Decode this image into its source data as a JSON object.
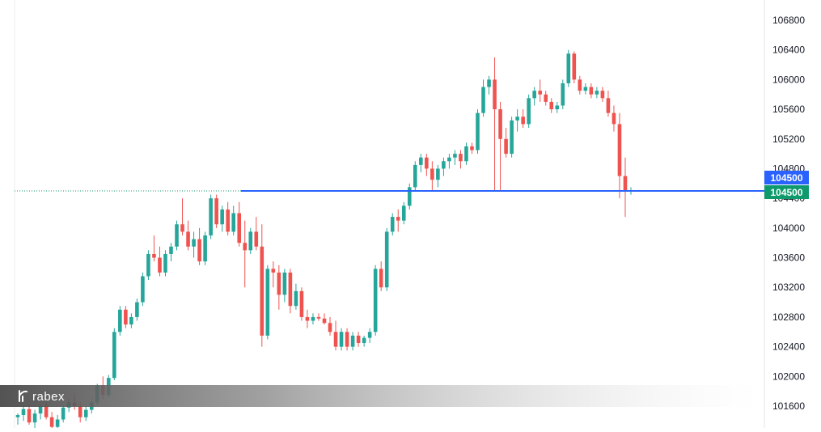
{
  "brand": {
    "name": "rabex"
  },
  "colors": {
    "up": "#26a69a",
    "down": "#ef5350",
    "level_line": "#2962ff",
    "price_tag_blue": "#2962ff",
    "price_tag_green": "#0e9a6c",
    "dotted_line": "#0e9a6c",
    "axis_text": "#131722",
    "background": "#ffffff"
  },
  "chart_data": {
    "type": "candlestick",
    "ylim": [
      101400,
      107000
    ],
    "y_ticks": [
      "106800",
      "106400",
      "106000",
      "105600",
      "105200",
      "104800",
      "104400",
      "104000",
      "103600",
      "103200",
      "102800",
      "102400",
      "102000",
      "101600"
    ],
    "level": {
      "value": 104500,
      "label": "104500"
    },
    "current_price": {
      "value": 104500,
      "label": "104500"
    },
    "candles": [
      [
        101450,
        101500,
        101350,
        101480
      ],
      [
        101480,
        101600,
        101400,
        101560
      ],
      [
        101560,
        101620,
        101350,
        101380
      ],
      [
        101380,
        101550,
        101300,
        101500
      ],
      [
        101500,
        101620,
        101420,
        101600
      ],
      [
        101600,
        101650,
        101420,
        101450
      ],
      [
        101450,
        101520,
        101300,
        101320
      ],
      [
        101320,
        101480,
        101250,
        101420
      ],
      [
        101420,
        101600,
        101380,
        101580
      ],
      [
        101580,
        101700,
        101520,
        101650
      ],
      [
        101650,
        101750,
        101550,
        101600
      ],
      [
        101600,
        101650,
        101380,
        101450
      ],
      [
        101450,
        101600,
        101400,
        101550
      ],
      [
        101550,
        101700,
        101500,
        101650
      ],
      [
        101650,
        101900,
        101620,
        101880
      ],
      [
        101880,
        102000,
        101700,
        101750
      ],
      [
        101750,
        102020,
        101720,
        101980
      ],
      [
        101980,
        102650,
        101950,
        102600
      ],
      [
        102600,
        102950,
        102550,
        102900
      ],
      [
        102900,
        102950,
        102650,
        102700
      ],
      [
        102700,
        102850,
        102650,
        102800
      ],
      [
        102800,
        103050,
        102750,
        103000
      ],
      [
        103000,
        103400,
        102950,
        103350
      ],
      [
        103350,
        103700,
        103300,
        103650
      ],
      [
        103650,
        103900,
        103550,
        103600
      ],
      [
        103600,
        103750,
        103350,
        103400
      ],
      [
        103400,
        103700,
        103350,
        103650
      ],
      [
        103650,
        103800,
        103550,
        103750
      ],
      [
        103750,
        104100,
        103700,
        104050
      ],
      [
        104050,
        104400,
        103900,
        103950
      ],
      [
        103950,
        104100,
        103700,
        103750
      ],
      [
        103750,
        103950,
        103600,
        103850
      ],
      [
        103850,
        104000,
        103500,
        103550
      ],
      [
        103550,
        103950,
        103500,
        103900
      ],
      [
        103900,
        104450,
        103850,
        104400
      ],
      [
        104400,
        104450,
        104000,
        104050
      ],
      [
        104050,
        104300,
        103950,
        104250
      ],
      [
        104250,
        104350,
        103900,
        103950
      ],
      [
        103950,
        104300,
        103900,
        104200
      ],
      [
        104200,
        104350,
        103750,
        103800
      ],
      [
        103800,
        104100,
        103200,
        103700
      ],
      [
        103700,
        104000,
        103650,
        103950
      ],
      [
        103950,
        104150,
        103700,
        103750
      ],
      [
        103750,
        104050,
        102400,
        102550
      ],
      [
        102550,
        103500,
        102500,
        103450
      ],
      [
        103450,
        103550,
        103200,
        103400
      ],
      [
        103400,
        103500,
        102900,
        103100
      ],
      [
        103100,
        103450,
        103000,
        103400
      ],
      [
        103400,
        103450,
        102850,
        102950
      ],
      [
        102950,
        103250,
        102900,
        103150
      ],
      [
        103150,
        103200,
        102750,
        102800
      ],
      [
        102800,
        102900,
        102650,
        102750
      ],
      [
        102750,
        102850,
        102700,
        102800
      ],
      [
        102800,
        102850,
        102750,
        102780
      ],
      [
        102780,
        102850,
        102700,
        102720
      ],
      [
        102720,
        102800,
        102550,
        102600
      ],
      [
        102600,
        102750,
        102350,
        102400
      ],
      [
        102400,
        102650,
        102350,
        102600
      ],
      [
        102600,
        102650,
        102350,
        102400
      ],
      [
        102400,
        102600,
        102350,
        102550
      ],
      [
        102550,
        102600,
        102400,
        102450
      ],
      [
        102450,
        102550,
        102400,
        102520
      ],
      [
        102520,
        102650,
        102450,
        102600
      ],
      [
        102600,
        103500,
        102550,
        103450
      ],
      [
        103450,
        103550,
        103150,
        103200
      ],
      [
        103200,
        104000,
        103150,
        103950
      ],
      [
        103950,
        104200,
        103900,
        104150
      ],
      [
        104150,
        104250,
        103950,
        104100
      ],
      [
        104100,
        104350,
        104050,
        104300
      ],
      [
        104300,
        104600,
        104250,
        104550
      ],
      [
        104550,
        104900,
        104500,
        104850
      ],
      [
        104850,
        105000,
        104750,
        104950
      ],
      [
        104950,
        105000,
        104700,
        104800
      ],
      [
        104800,
        104900,
        104500,
        104650
      ],
      [
        104650,
        104850,
        104550,
        104800
      ],
      [
        104800,
        104950,
        104700,
        104900
      ],
      [
        104900,
        105000,
        104800,
        104950
      ],
      [
        104950,
        105050,
        104850,
        105000
      ],
      [
        105000,
        105050,
        104800,
        104900
      ],
      [
        104900,
        105150,
        104850,
        105100
      ],
      [
        105100,
        105150,
        105000,
        105050
      ],
      [
        105050,
        105600,
        105000,
        105550
      ],
      [
        105550,
        106000,
        105500,
        105900
      ],
      [
        105900,
        106050,
        105800,
        106000
      ],
      [
        106000,
        106300,
        104500,
        105600
      ],
      [
        105600,
        105700,
        104500,
        105200
      ],
      [
        105200,
        105350,
        104950,
        105000
      ],
      [
        105000,
        105500,
        104950,
        105450
      ],
      [
        105450,
        105600,
        105300,
        105500
      ],
      [
        105500,
        105600,
        105350,
        105400
      ],
      [
        105400,
        105800,
        105350,
        105750
      ],
      [
        105750,
        105900,
        105650,
        105850
      ],
      [
        105850,
        106000,
        105700,
        105800
      ],
      [
        105800,
        105850,
        105650,
        105700
      ],
      [
        105700,
        105750,
        105550,
        105600
      ],
      [
        105600,
        105700,
        105550,
        105650
      ],
      [
        105650,
        106000,
        105600,
        105950
      ],
      [
        105950,
        106400,
        105900,
        106350
      ],
      [
        106350,
        106380,
        105950,
        106000
      ],
      [
        106000,
        106050,
        105800,
        105850
      ],
      [
        105850,
        105950,
        105800,
        105900
      ],
      [
        105900,
        105950,
        105750,
        105800
      ],
      [
        105800,
        105900,
        105750,
        105850
      ],
      [
        105850,
        105900,
        105700,
        105750
      ],
      [
        105750,
        105850,
        105500,
        105550
      ],
      [
        105550,
        105650,
        105300,
        105400
      ],
      [
        105400,
        105550,
        104400,
        104700
      ],
      [
        104700,
        104950,
        104150,
        104500
      ],
      [
        104500,
        104550,
        104450,
        104500
      ]
    ]
  }
}
